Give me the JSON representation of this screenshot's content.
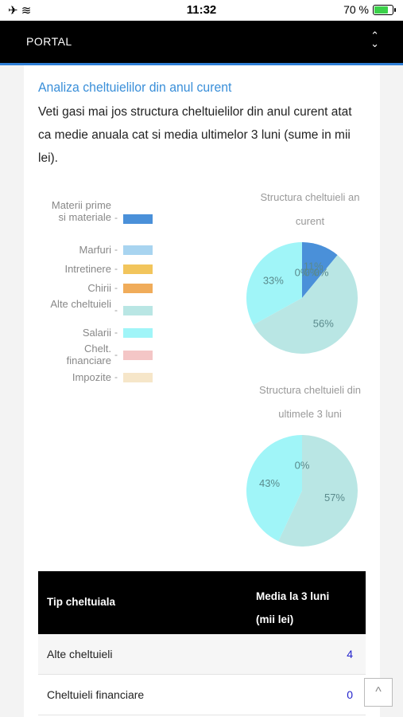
{
  "status_bar": {
    "time": "11:32",
    "battery_text": "70 %"
  },
  "navbar": {
    "title": "PORTAL"
  },
  "section": {
    "title": "Analiza cheltuielilor din anul curent",
    "intro": "Veti gasi mai jos structura cheltuielilor din anul curent atat ca medie anuala cat si media ultimelor 3 luni (sume in mii lei)."
  },
  "legend": [
    {
      "label": "Materii prime si materiale",
      "color": "#4a90d9"
    },
    {
      "label": "Marfuri",
      "color": "#a8d4f0"
    },
    {
      "label": "Intretinere",
      "color": "#f2c55c"
    },
    {
      "label": "Chirii",
      "color": "#f0ac5a"
    },
    {
      "label": "Alte cheltuieli",
      "color": "#b9e6e4"
    },
    {
      "label": "Salarii",
      "color": "#a0f5f8"
    },
    {
      "label": "Chelt. financiare",
      "color": "#f4c6c6"
    },
    {
      "label": "Impozite",
      "color": "#f6e6c9"
    }
  ],
  "chart_data": [
    {
      "type": "pie",
      "title": "Structura cheltuieli an curent",
      "labels": [
        "Materii prime si materiale",
        "Alte cheltuieli",
        "Salarii",
        "Marfuri",
        "Intretinere",
        "Chirii"
      ],
      "values": [
        11,
        56,
        33,
        0,
        0,
        0
      ],
      "data_labels": [
        "11%",
        "56%",
        "33%",
        "0%",
        "0%",
        "0%"
      ]
    },
    {
      "type": "pie",
      "title": "Structura cheltuieli din ultimele 3 luni",
      "labels": [
        "Alte cheltuieli",
        "Salarii",
        "Materii prime si materiale"
      ],
      "values": [
        57,
        43,
        0
      ],
      "data_labels": [
        "57%",
        "43%",
        "0%"
      ]
    }
  ],
  "table": {
    "headers": [
      "Tip cheltuiala",
      "Media la 3 luni",
      "(mii lei)"
    ],
    "rows": [
      {
        "name": "Alte cheltuieli",
        "value": "4"
      },
      {
        "name": "Cheltuieli financiare",
        "value": "0"
      }
    ]
  },
  "scroll_top_label": "^"
}
